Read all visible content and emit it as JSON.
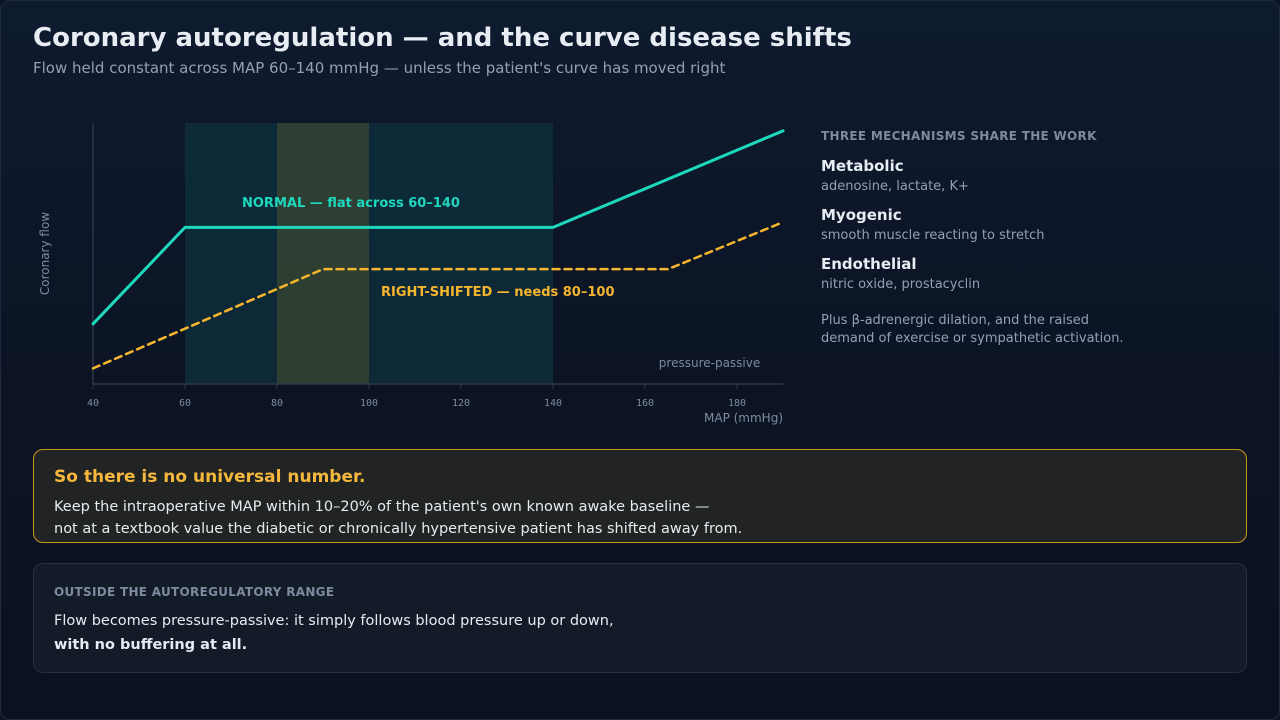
{
  "page": {
    "title": "Coronary autoregulation — and the curve disease shifts",
    "subtitle": "Flow held constant across MAP 60–140 mmHg — unless the patient's curve has moved right"
  },
  "chart_data": {
    "type": "line",
    "xlabel": "MAP (mmHg)",
    "ylabel": "Coronary flow",
    "xlim": [
      40,
      190
    ],
    "x_ticks": [
      40,
      60,
      80,
      100,
      120,
      140,
      160,
      180
    ],
    "y_ticks": [],
    "grid": false,
    "shaded_ranges": [
      {
        "from": 60,
        "to": 140,
        "color": "#0f3a45"
      },
      {
        "from": 80,
        "to": 100,
        "color": "#3a4630"
      }
    ],
    "series": [
      {
        "name": "NORMAL — flat across 60–140",
        "color": "#1ed8be",
        "dash": false,
        "points": [
          [
            40,
            0.23
          ],
          [
            60,
            0.6
          ],
          [
            140,
            0.6
          ],
          [
            190,
            0.97
          ]
        ]
      },
      {
        "name": "RIGHT-SHIFTED — needs 80–100",
        "color": "#f5b52e",
        "dash": true,
        "points": [
          [
            40,
            0.06
          ],
          [
            90,
            0.44
          ],
          [
            165,
            0.44
          ],
          [
            190,
            0.62
          ]
        ]
      }
    ],
    "annotations": [
      {
        "text": "pressure-passive",
        "x": 163,
        "y": 0.065
      }
    ]
  },
  "side": {
    "heading": "THREE MECHANISMS SHARE THE WORK",
    "mechanisms": [
      {
        "name": "Metabolic",
        "desc": "adenosine, lactate, K+"
      },
      {
        "name": "Myogenic",
        "desc": "smooth muscle reacting to stretch"
      },
      {
        "name": "Endothelial",
        "desc": "nitric oxide, prostacyclin"
      }
    ],
    "note_line1": "Plus β-adrenergic dilation, and the raised",
    "note_line2": "demand of exercise or sympathetic activation."
  },
  "callout": {
    "title": "So there is no universal number.",
    "line1": "Keep the intraoperative MAP within 10–20% of the patient's own known awake baseline —",
    "line2": "not at a textbook value the diabetic or chronically hypertensive patient has shifted away from."
  },
  "outside": {
    "heading": "OUTSIDE THE AUTOREGULATORY RANGE",
    "line1": "Flow becomes pressure-passive: it simply follows blood pressure up or down,",
    "line2": "with no buffering at all."
  }
}
